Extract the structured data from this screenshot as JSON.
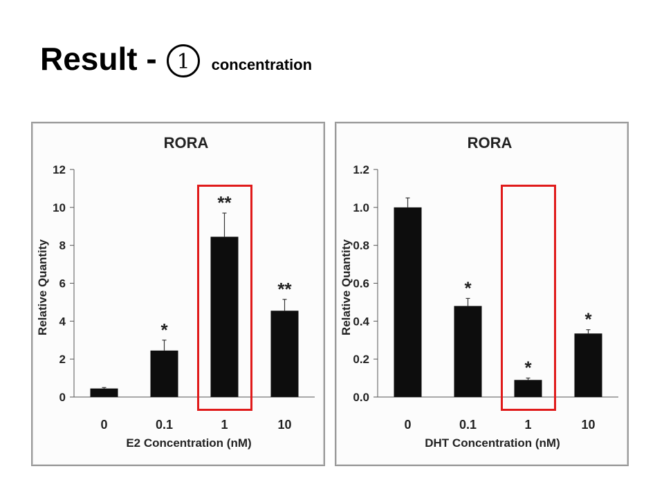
{
  "slide": {
    "title_main": "Result -",
    "title_number": "1",
    "title_sub": "concentration"
  },
  "chart_data": [
    {
      "type": "bar",
      "title": "RORA",
      "xlabel": "E2 Concentration (nM)",
      "ylabel": "Relative Quantity",
      "categories": [
        "0",
        "0.1",
        "1",
        "10"
      ],
      "values": [
        0.45,
        2.45,
        8.45,
        4.55
      ],
      "error": [
        0.05,
        0.55,
        1.25,
        0.6
      ],
      "significance": [
        "",
        "*",
        "**",
        "**"
      ],
      "ylim": [
        0,
        12
      ],
      "yticks": [
        "0",
        "2",
        "4",
        "6",
        "8",
        "10",
        "12"
      ],
      "highlighted_category": "1",
      "bar_color": "#0d0d0d",
      "highlight_color": "#e01a1a",
      "grid": false
    },
    {
      "type": "bar",
      "title": "RORA",
      "xlabel": "DHT Concentration (nM)",
      "ylabel": "Relative Quantity",
      "categories": [
        "0",
        "0.1",
        "1",
        "10"
      ],
      "values": [
        1.0,
        0.48,
        0.09,
        0.335
      ],
      "error": [
        0.05,
        0.04,
        0.01,
        0.02
      ],
      "significance": [
        "",
        "*",
        "*",
        "*"
      ],
      "ylim": [
        0,
        1.2
      ],
      "yticks": [
        "0.0",
        "0.2",
        "0.4",
        "0.6",
        "0.8",
        "1.0",
        "1.2"
      ],
      "highlighted_category": "1",
      "bar_color": "#0d0d0d",
      "highlight_color": "#e01a1a",
      "grid": false
    }
  ]
}
